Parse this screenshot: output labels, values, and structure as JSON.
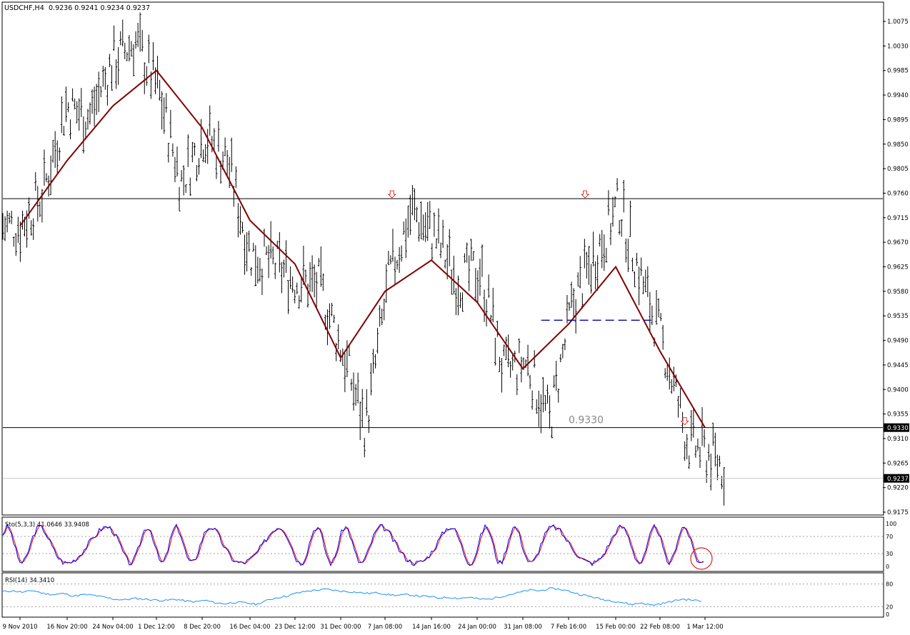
{
  "header": {
    "symbol_label": "USDCHF,H4",
    "ohlc_label": "0.9236 0.9241 0.9234 0.9237"
  },
  "colors": {
    "background": "#ffffff",
    "bars": "#000000",
    "moving_average": "#800000",
    "horizontal_lines": "#000000",
    "arrow": "#e03030",
    "dashed_line": "#0000a0",
    "stoch_main": "#0000ff",
    "stoch_signal": "#ff0000",
    "rsi": "#1e90ff",
    "grid_dots": "#a0a0a0",
    "circle": "#e02020"
  },
  "chart_data": [
    {
      "type": "ohlc",
      "name": "USDCHF H4 price",
      "x_tick_labels": [
        "9 Nov 2010",
        "16 Nov 20:00",
        "24 Nov 04:00",
        "1 Dec 12:00",
        "8 Dec 20:00",
        "16 Dec 04:00",
        "23 Dec 12:00",
        "31 Dec 00:00",
        "7 Jan 08:00",
        "14 Jan 16:00",
        "24 Jan 00:00",
        "31 Jan 08:00",
        "7 Feb 16:00",
        "15 Feb 00:00",
        "22 Feb 08:00",
        "1 Mar 12:00"
      ],
      "y_tick_labels": [
        "1.0075",
        "1.0030",
        "0.9985",
        "0.9940",
        "0.9895",
        "0.9850",
        "0.9805",
        "0.9760",
        "0.9715",
        "0.9670",
        "0.9625",
        "0.9580",
        "0.9535",
        "0.9490",
        "0.9445",
        "0.9400",
        "0.9355",
        "0.9310",
        "0.9265",
        "0.9220",
        "0.9175"
      ],
      "ylim": [
        0.9165,
        1.009
      ],
      "current_price_label": "0.9237",
      "current_price": 0.9237,
      "support_level_label": "0.9330",
      "support_level": 0.933,
      "chart_annotation": "0.9330",
      "resistance_level": 0.975,
      "neckline_dashed": {
        "from": "7 Feb 16:00",
        "to": "15 Feb 00:00",
        "level": 0.9527
      },
      "price_path": [
        {
          "x": "9 Nov 2010",
          "y": 0.97
        },
        {
          "x": "12 Nov",
          "y": 0.976
        },
        {
          "x": "16 Nov 20:00",
          "y": 0.992
        },
        {
          "x": "20 Nov",
          "y": 0.99
        },
        {
          "x": "24 Nov 04:00",
          "y": 1.0
        },
        {
          "x": "28 Nov",
          "y": 1.004
        },
        {
          "x": "1 Dec 12:00",
          "y": 0.995
        },
        {
          "x": "3 Dec",
          "y": 0.978
        },
        {
          "x": "8 Dec 20:00",
          "y": 0.987
        },
        {
          "x": "10 Dec",
          "y": 0.982
        },
        {
          "x": "12 Dec",
          "y": 0.965
        },
        {
          "x": "16 Dec 04:00",
          "y": 0.963
        },
        {
          "x": "20 Dec",
          "y": 0.96
        },
        {
          "x": "23 Dec 12:00",
          "y": 0.959
        },
        {
          "x": "26 Dec",
          "y": 0.947
        },
        {
          "x": "31 Dec 00:00",
          "y": 0.933
        },
        {
          "x": "3 Jan",
          "y": 0.96
        },
        {
          "x": "7 Jan 08:00",
          "y": 0.973
        },
        {
          "x": "10 Jan",
          "y": 0.968
        },
        {
          "x": "14 Jan 16:00",
          "y": 0.96
        },
        {
          "x": "18 Jan",
          "y": 0.962
        },
        {
          "x": "24 Jan 00:00",
          "y": 0.943
        },
        {
          "x": "27 Jan",
          "y": 0.945
        },
        {
          "x": "31 Jan 08:00",
          "y": 0.934
        },
        {
          "x": "3 Feb",
          "y": 0.956
        },
        {
          "x": "7 Feb 16:00",
          "y": 0.965
        },
        {
          "x": "10 Feb",
          "y": 0.974
        },
        {
          "x": "15 Feb 00:00",
          "y": 0.96
        },
        {
          "x": "18 Feb",
          "y": 0.947
        },
        {
          "x": "22 Feb 08:00",
          "y": 0.93
        },
        {
          "x": "25 Feb",
          "y": 0.928
        },
        {
          "x": "1 Mar 12:00",
          "y": 0.9237
        }
      ],
      "moving_average_path": [
        {
          "x": "9 Nov 2010",
          "y": 0.97
        },
        {
          "x": "16 Nov 20:00",
          "y": 0.982
        },
        {
          "x": "24 Nov 04:00",
          "y": 0.992
        },
        {
          "x": "1 Dec 12:00",
          "y": 0.9985
        },
        {
          "x": "8 Dec 20:00",
          "y": 0.988
        },
        {
          "x": "16 Dec 04:00",
          "y": 0.971
        },
        {
          "x": "23 Dec 12:00",
          "y": 0.963
        },
        {
          "x": "31 Dec 00:00",
          "y": 0.9458
        },
        {
          "x": "7 Jan 08:00",
          "y": 0.958
        },
        {
          "x": "14 Jan 16:00",
          "y": 0.9637
        },
        {
          "x": "24 Jan 00:00",
          "y": 0.956
        },
        {
          "x": "31 Jan 08:00",
          "y": 0.9438
        },
        {
          "x": "7 Feb 16:00",
          "y": 0.952
        },
        {
          "x": "15 Feb 00:00",
          "y": 0.9625
        },
        {
          "x": "22 Feb 08:00",
          "y": 0.947
        },
        {
          "x": "1 Mar 12:00",
          "y": 0.933
        }
      ]
    },
    {
      "type": "line",
      "name": "Stochastic oscillator",
      "label": "Sto(5,3,3) 41.0646 33.9408",
      "y_tick_labels": [
        "100",
        "70",
        "30",
        "0"
      ],
      "levels": [
        70,
        30
      ],
      "ylim": [
        0,
        100
      ],
      "main_last": 41.0646,
      "signal_last": 33.9408
    },
    {
      "type": "line",
      "name": "RSI",
      "label": "RSI(14) 34.3410",
      "y_tick_labels": [
        "80",
        "20",
        "0"
      ],
      "levels": [
        80,
        20
      ],
      "ylim": [
        0,
        100
      ],
      "last_value": 34.341,
      "values": [
        60,
        62,
        58,
        63,
        55,
        52,
        55,
        48,
        52,
        50,
        45,
        40,
        38,
        42,
        40,
        38,
        36,
        40,
        35,
        33,
        37,
        30,
        28,
        32,
        30,
        26,
        36,
        44,
        48,
        56,
        61,
        64,
        66,
        62,
        60,
        58,
        55,
        57,
        52,
        50,
        52,
        48,
        47,
        43,
        45,
        42,
        45,
        40,
        40,
        46,
        52,
        58,
        64,
        62,
        68,
        66,
        60,
        52,
        47,
        40,
        36,
        32,
        26,
        30,
        24,
        28,
        34,
        40,
        38,
        34
      ]
    }
  ]
}
